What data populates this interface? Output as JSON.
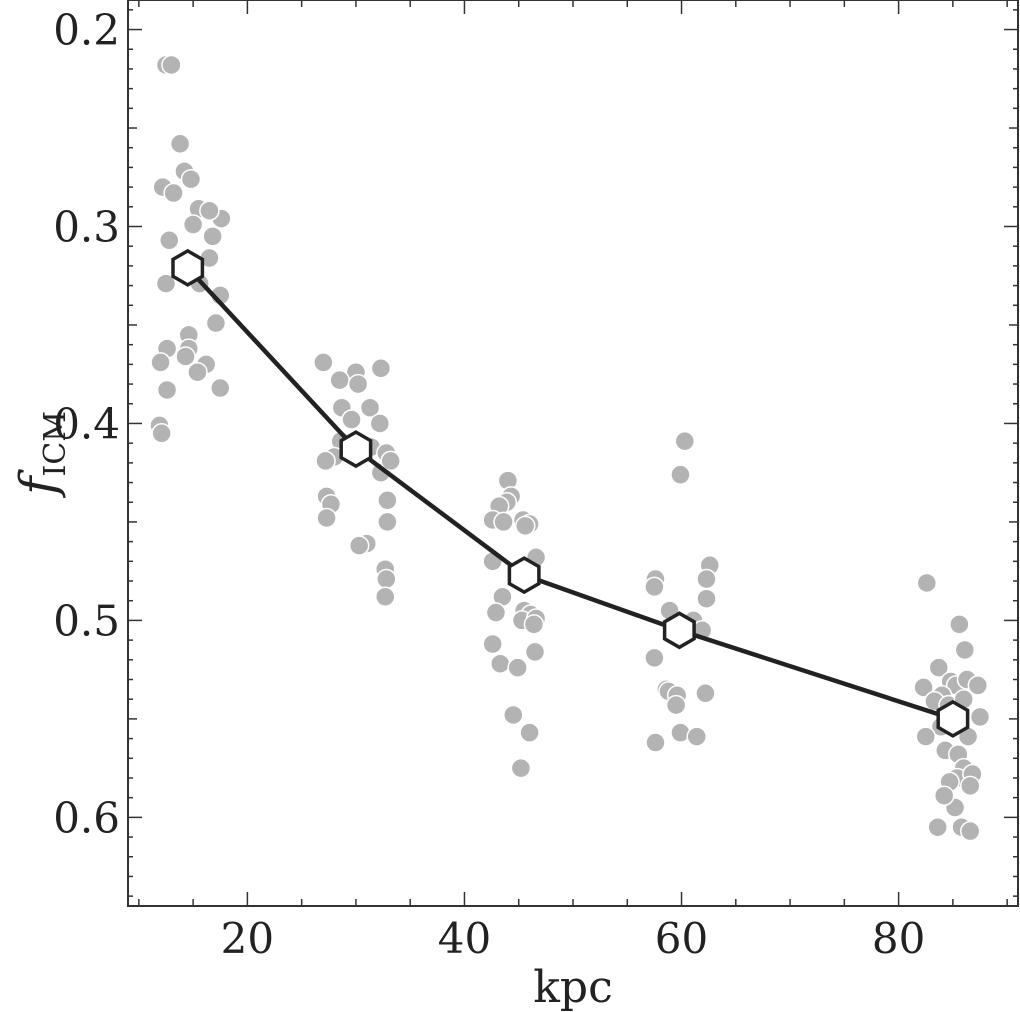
{
  "chart_data": {
    "type": "scatter",
    "xlabel": "kpc",
    "ylabel_main": "f",
    "ylabel_sub": "ICM",
    "xlim": [
      9,
      91
    ],
    "ylim": [
      0.645,
      0.185
    ],
    "y_inverted": true,
    "xticks": [
      {
        "value": 20,
        "label": "20"
      },
      {
        "value": 40,
        "label": "40"
      },
      {
        "value": 60,
        "label": "60"
      },
      {
        "value": 80,
        "label": "80"
      }
    ],
    "yticks": [
      {
        "value": 0.2,
        "label": "0.2"
      },
      {
        "value": 0.3,
        "label": "0.3"
      },
      {
        "value": 0.4,
        "label": "0.4"
      },
      {
        "value": 0.5,
        "label": "0.5"
      },
      {
        "value": 0.6,
        "label": "0.6"
      }
    ],
    "colors": {
      "scatter": "#b3b3b3",
      "line": "#222222",
      "marker_fill": "#ffffff"
    },
    "scatter_points": [
      [
        12.5,
        0.218
      ],
      [
        13.0,
        0.218
      ],
      [
        13.8,
        0.258
      ],
      [
        14.2,
        0.272
      ],
      [
        14.8,
        0.276
      ],
      [
        12.2,
        0.28
      ],
      [
        13.2,
        0.283
      ],
      [
        15.5,
        0.291
      ],
      [
        15.0,
        0.299
      ],
      [
        17.6,
        0.296
      ],
      [
        16.5,
        0.292
      ],
      [
        16.8,
        0.305
      ],
      [
        12.8,
        0.307
      ],
      [
        16.5,
        0.316
      ],
      [
        12.5,
        0.329
      ],
      [
        15.6,
        0.329
      ],
      [
        17.5,
        0.335
      ],
      [
        17.1,
        0.349
      ],
      [
        14.6,
        0.355
      ],
      [
        12.6,
        0.362
      ],
      [
        14.6,
        0.362
      ],
      [
        14.3,
        0.366
      ],
      [
        12.0,
        0.369
      ],
      [
        16.2,
        0.37
      ],
      [
        15.4,
        0.374
      ],
      [
        12.6,
        0.383
      ],
      [
        17.5,
        0.382
      ],
      [
        11.9,
        0.401
      ],
      [
        12.1,
        0.405
      ],
      [
        27.0,
        0.369
      ],
      [
        30.0,
        0.374
      ],
      [
        32.3,
        0.372
      ],
      [
        28.5,
        0.378
      ],
      [
        30.2,
        0.38
      ],
      [
        28.7,
        0.392
      ],
      [
        31.3,
        0.392
      ],
      [
        29.6,
        0.398
      ],
      [
        32.2,
        0.4
      ],
      [
        28.6,
        0.409
      ],
      [
        31.4,
        0.412
      ],
      [
        32.8,
        0.415
      ],
      [
        28.0,
        0.417
      ],
      [
        27.2,
        0.419
      ],
      [
        32.3,
        0.425
      ],
      [
        33.2,
        0.419
      ],
      [
        27.3,
        0.437
      ],
      [
        27.7,
        0.441
      ],
      [
        32.9,
        0.439
      ],
      [
        27.3,
        0.448
      ],
      [
        32.9,
        0.45
      ],
      [
        31.0,
        0.461
      ],
      [
        30.3,
        0.462
      ],
      [
        32.7,
        0.474
      ],
      [
        32.8,
        0.479
      ],
      [
        32.7,
        0.488
      ],
      [
        44.0,
        0.429
      ],
      [
        44.3,
        0.437
      ],
      [
        43.9,
        0.44
      ],
      [
        43.2,
        0.442
      ],
      [
        42.6,
        0.449
      ],
      [
        43.6,
        0.45
      ],
      [
        45.4,
        0.449
      ],
      [
        46.0,
        0.451
      ],
      [
        45.6,
        0.452
      ],
      [
        42.6,
        0.47
      ],
      [
        46.6,
        0.468
      ],
      [
        45.7,
        0.48
      ],
      [
        43.5,
        0.488
      ],
      [
        42.9,
        0.496
      ],
      [
        45.5,
        0.495
      ],
      [
        46.1,
        0.497
      ],
      [
        45.3,
        0.5
      ],
      [
        46.6,
        0.499
      ],
      [
        46.4,
        0.502
      ],
      [
        42.6,
        0.512
      ],
      [
        46.5,
        0.516
      ],
      [
        43.3,
        0.522
      ],
      [
        44.9,
        0.524
      ],
      [
        44.5,
        0.548
      ],
      [
        46.0,
        0.557
      ],
      [
        45.2,
        0.575
      ],
      [
        60.3,
        0.409
      ],
      [
        59.9,
        0.426
      ],
      [
        62.6,
        0.472
      ],
      [
        57.6,
        0.479
      ],
      [
        57.5,
        0.483
      ],
      [
        62.3,
        0.479
      ],
      [
        58.9,
        0.495
      ],
      [
        62.3,
        0.489
      ],
      [
        61.1,
        0.5
      ],
      [
        61.9,
        0.505
      ],
      [
        57.5,
        0.519
      ],
      [
        58.6,
        0.535
      ],
      [
        58.8,
        0.536
      ],
      [
        59.6,
        0.538
      ],
      [
        62.2,
        0.537
      ],
      [
        59.5,
        0.543
      ],
      [
        59.9,
        0.557
      ],
      [
        61.4,
        0.559
      ],
      [
        57.6,
        0.562
      ],
      [
        82.6,
        0.481
      ],
      [
        85.6,
        0.502
      ],
      [
        83.7,
        0.524
      ],
      [
        86.1,
        0.515
      ],
      [
        84.8,
        0.531
      ],
      [
        82.3,
        0.534
      ],
      [
        85.3,
        0.533
      ],
      [
        86.3,
        0.53
      ],
      [
        87.3,
        0.533
      ],
      [
        84.0,
        0.538
      ],
      [
        83.3,
        0.541
      ],
      [
        84.6,
        0.543
      ],
      [
        86.0,
        0.54
      ],
      [
        87.5,
        0.549
      ],
      [
        83.9,
        0.554
      ],
      [
        82.5,
        0.559
      ],
      [
        85.7,
        0.553
      ],
      [
        86.4,
        0.559
      ],
      [
        84.3,
        0.566
      ],
      [
        85.5,
        0.568
      ],
      [
        86.0,
        0.575
      ],
      [
        85.4,
        0.58
      ],
      [
        86.8,
        0.578
      ],
      [
        86.6,
        0.584
      ],
      [
        84.7,
        0.582
      ],
      [
        85.2,
        0.595
      ],
      [
        84.2,
        0.589
      ],
      [
        83.6,
        0.605
      ],
      [
        85.8,
        0.605
      ],
      [
        86.6,
        0.607
      ]
    ],
    "series": [
      {
        "x": [
          14.5,
          30.0,
          45.5,
          59.8,
          85.0
        ],
        "y": [
          0.321,
          0.413,
          0.477,
          0.505,
          0.55
        ]
      }
    ]
  }
}
